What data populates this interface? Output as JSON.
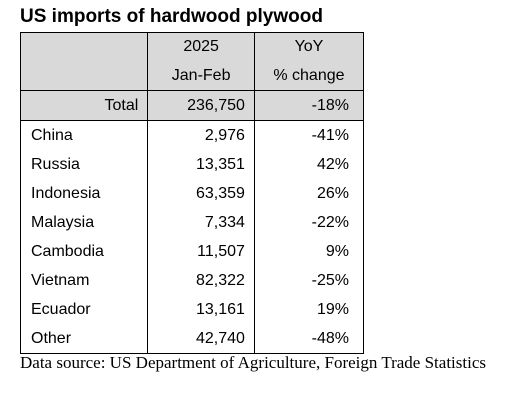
{
  "title": "US imports of hardwood plywood",
  "chart_data": {
    "type": "table",
    "title": "US imports of hardwood plywood",
    "columns": [
      {
        "line1": "",
        "line2": ""
      },
      {
        "line1": "2025",
        "line2": "Jan-Feb"
      },
      {
        "line1": "YoY",
        "line2": "% change"
      }
    ],
    "total": {
      "label": "Total",
      "value": "236,750",
      "change": "-18%"
    },
    "rows": [
      {
        "country": "China",
        "value": "2,976",
        "change": "-41%"
      },
      {
        "country": "Russia",
        "value": "13,351",
        "change": "42%"
      },
      {
        "country": "Indonesia",
        "value": "63,359",
        "change": "26%"
      },
      {
        "country": "Malaysia",
        "value": "7,334",
        "change": "-22%"
      },
      {
        "country": "Cambodia",
        "value": "11,507",
        "change": "9%"
      },
      {
        "country": "Vietnam",
        "value": "82,322",
        "change": "-25%"
      },
      {
        "country": "Ecuador",
        "value": "13,161",
        "change": "19%"
      },
      {
        "country": "Other",
        "value": "42,740",
        "change": "-48%"
      }
    ]
  },
  "source": "Data source: US Department of Agriculture, Foreign Trade Statistics"
}
